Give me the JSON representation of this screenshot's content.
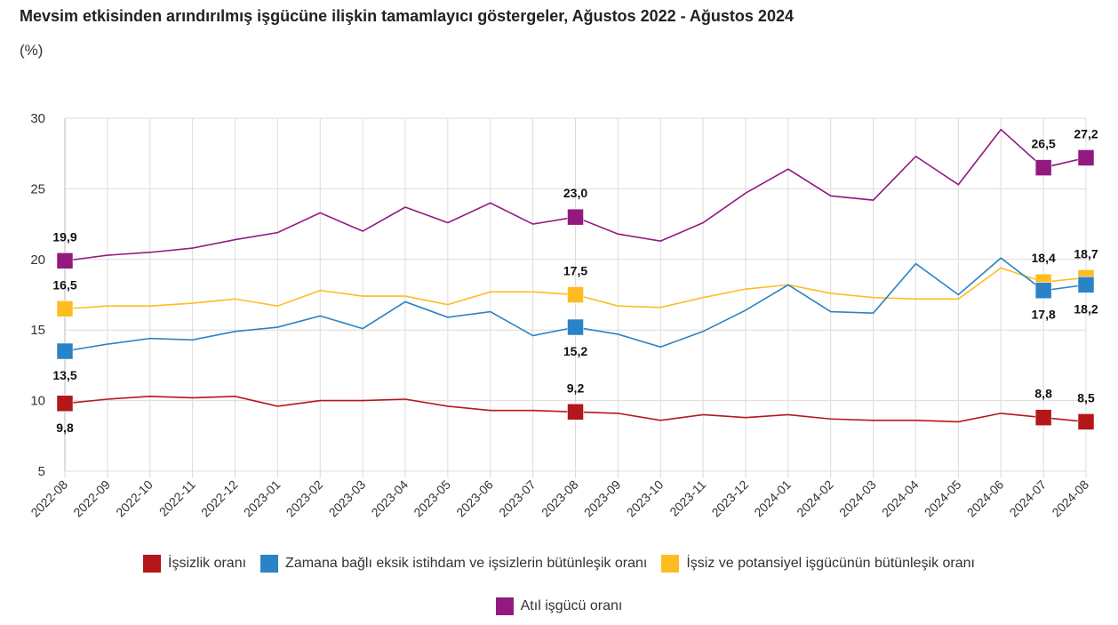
{
  "chart_data": {
    "type": "line",
    "title": "Mevsim etkisinden arındırılmış işgücüne ilişkin tamamlayıcı göstergeler, Ağustos 2022 - Ağustos 2024",
    "subtitle": "(%)",
    "ylim": [
      5,
      30
    ],
    "yticks": [
      5,
      10,
      15,
      20,
      25,
      30
    ],
    "grid": true,
    "legend_position": "bottom",
    "x": [
      "2022-08",
      "2022-09",
      "2022-10",
      "2022-11",
      "2022-12",
      "2023-01",
      "2023-02",
      "2023-03",
      "2023-04",
      "2023-05",
      "2023-06",
      "2023-07",
      "2023-08",
      "2023-09",
      "2023-10",
      "2023-11",
      "2023-12",
      "2024-01",
      "2024-02",
      "2024-03",
      "2024-04",
      "2024-05",
      "2024-06",
      "2024-07",
      "2024-08"
    ],
    "marked_points": [
      0,
      12,
      23,
      24
    ],
    "series": [
      {
        "name": "İşsizlik oranı",
        "color": "#b3171a",
        "label_pos": "above",
        "values": [
          9.8,
          10.1,
          10.3,
          10.2,
          10.3,
          9.6,
          10.0,
          10.0,
          10.1,
          9.6,
          9.3,
          9.3,
          9.2,
          9.1,
          8.6,
          9.0,
          8.8,
          9.0,
          8.7,
          8.6,
          8.6,
          8.5,
          9.1,
          8.8,
          8.5
        ],
        "labels": [
          "9,8",
          "9,2",
          "8,8",
          "8,5"
        ]
      },
      {
        "name": "Zamana bağlı eksik istihdam ve işsizlerin bütünleşik oranı",
        "color": "#2a83c6",
        "label_pos": "below",
        "values": [
          13.5,
          14.0,
          14.4,
          14.3,
          14.9,
          15.2,
          16.0,
          15.1,
          17.0,
          15.9,
          16.3,
          14.6,
          15.2,
          14.7,
          13.8,
          14.9,
          16.4,
          18.2,
          16.3,
          16.2,
          19.7,
          17.5,
          20.1,
          17.8,
          18.2
        ],
        "labels": [
          "13,5",
          "15,2",
          "17,8",
          "18,2"
        ]
      },
      {
        "name": "İşsiz ve potansiyel işgücünün bütünleşik oranı",
        "color": "#fdbd22",
        "label_pos": "above",
        "values": [
          16.5,
          16.7,
          16.7,
          16.9,
          17.2,
          16.7,
          17.8,
          17.4,
          17.4,
          16.8,
          17.7,
          17.7,
          17.5,
          16.7,
          16.6,
          17.3,
          17.9,
          18.2,
          17.6,
          17.3,
          17.2,
          17.2,
          19.4,
          18.4,
          18.7
        ],
        "labels": [
          "16,5",
          "17,5",
          "18,4",
          "18,7"
        ]
      },
      {
        "name": "Atıl işgücü oranı",
        "color": "#921a7f",
        "label_pos": "above",
        "values": [
          19.9,
          20.3,
          20.5,
          20.8,
          21.4,
          21.9,
          23.3,
          22.0,
          23.7,
          22.6,
          24.0,
          22.5,
          23.0,
          21.8,
          21.3,
          22.6,
          24.7,
          26.4,
          24.5,
          24.2,
          27.3,
          25.3,
          29.2,
          26.5,
          27.2
        ],
        "labels": [
          "19,9",
          "23,0",
          "26,5",
          "27,2"
        ]
      }
    ]
  }
}
